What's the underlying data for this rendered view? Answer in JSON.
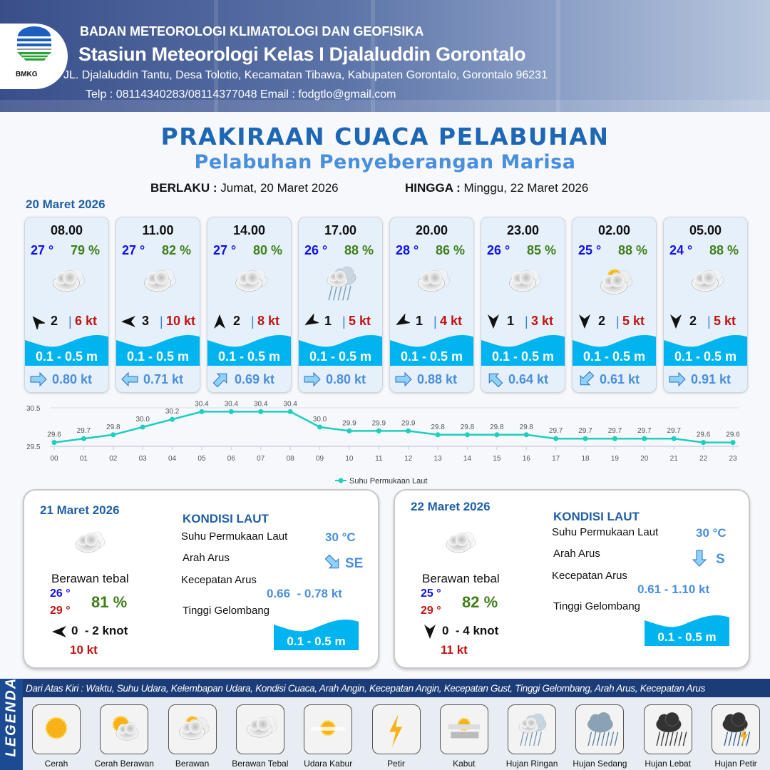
{
  "header": {
    "agency": "BADAN METEOROLOGI KLIMATOLOGI DAN GEOFISIKA",
    "station": "Stasiun Meteorologi Kelas I Djalaluddin Gorontalo",
    "address": "JL. Djalaluddin Tantu, Desa Tolotio, Kecamatan Tibawa, Kabupaten Gorontalo, Gorontalo 96231",
    "contact": "Telp : 08114340283/08114377048 Email : fodgtlo@gmail.com",
    "logo_text": "BMKG"
  },
  "title": "PRAKIRAAN CUACA PELABUHAN",
  "subtitle": "Pelabuhan Penyeberangan Marisa",
  "validity": {
    "from_label": "BERLAKU :",
    "from": "Jumat, 20 Maret 2026",
    "to_label": "HINGGA :",
    "to": "Minggu, 22 Maret 2026"
  },
  "day1": {
    "date": "20 Maret 2026",
    "cards": [
      {
        "time": "08.00",
        "temp": "27 °",
        "hum": "79 %",
        "icon": "berawan-tebal",
        "wind_dir_deg": -40,
        "wind": "2",
        "gust": "6 kt",
        "wave": "0.1 - 0.5 m",
        "cur_dir_deg": 90,
        "cur": "0.80 kt"
      },
      {
        "time": "11.00",
        "temp": "27 °",
        "hum": "82 %",
        "icon": "berawan-tebal",
        "wind_dir_deg": -90,
        "wind": "3",
        "gust": "10 kt",
        "wave": "0.1 - 0.5 m",
        "cur_dir_deg": 270,
        "cur": "0.71 kt"
      },
      {
        "time": "14.00",
        "temp": "27 °",
        "hum": "80 %",
        "icon": "berawan-tebal",
        "wind_dir_deg": 0,
        "wind": "2",
        "gust": "8 kt",
        "wave": "0.1 - 0.5 m",
        "cur_dir_deg": 45,
        "cur": "0.69 kt"
      },
      {
        "time": "17.00",
        "temp": "26 °",
        "hum": "88 %",
        "icon": "hujan-ringan",
        "wind_dir_deg": -120,
        "wind": "1",
        "gust": "5 kt",
        "wave": "0.1 - 0.5 m",
        "cur_dir_deg": 90,
        "cur": "0.80 kt"
      },
      {
        "time": "20.00",
        "temp": "28 °",
        "hum": "86 %",
        "icon": "berawan-tebal",
        "wind_dir_deg": -120,
        "wind": "1",
        "gust": "4 kt",
        "wave": "0.1 - 0.5 m",
        "cur_dir_deg": 90,
        "cur": "0.88 kt"
      },
      {
        "time": "23.00",
        "temp": "26 °",
        "hum": "85 %",
        "icon": "berawan-tebal",
        "wind_dir_deg": 180,
        "wind": "1",
        "gust": "3 kt",
        "wave": "0.1 - 0.5 m",
        "cur_dir_deg": 315,
        "cur": "0.64 kt"
      },
      {
        "time": "02.00",
        "temp": "25 °",
        "hum": "88 %",
        "icon": "berawan",
        "wind_dir_deg": 180,
        "wind": "2",
        "gust": "5 kt",
        "wave": "0.1 - 0.5 m",
        "cur_dir_deg": 225,
        "cur": "0.61 kt"
      },
      {
        "time": "05.00",
        "temp": "24 °",
        "hum": "88 %",
        "icon": "berawan-tebal",
        "wind_dir_deg": 180,
        "wind": "2",
        "gust": "5 kt",
        "wave": "0.1 - 0.5 m",
        "cur_dir_deg": 90,
        "cur": "0.91 kt"
      }
    ]
  },
  "chart_data": {
    "type": "line",
    "x": [
      "00",
      "01",
      "02",
      "03",
      "04",
      "05",
      "06",
      "07",
      "08",
      "09",
      "10",
      "11",
      "12",
      "13",
      "14",
      "15",
      "16",
      "17",
      "18",
      "19",
      "20",
      "21",
      "22",
      "23"
    ],
    "series": [
      {
        "name": "Suhu Permukaan Laut",
        "values": [
          29.6,
          29.7,
          29.8,
          30.0,
          30.2,
          30.4,
          30.4,
          30.4,
          30.4,
          30.0,
          29.9,
          29.9,
          29.9,
          29.8,
          29.8,
          29.8,
          29.8,
          29.7,
          29.7,
          29.7,
          29.7,
          29.7,
          29.6,
          29.6
        ],
        "color": "#1ccfbf"
      }
    ],
    "yticks": [
      "30.5",
      "29.5"
    ],
    "ylim": [
      29.5,
      30.5
    ],
    "legend": "bottom",
    "grid": true
  },
  "days": [
    {
      "date": "21 Maret 2026",
      "icon": "berawan-tebal",
      "cond": "Berawan tebal",
      "tmin": "26 °",
      "tmax": "29 °",
      "hum": "81 %",
      "wind_dir_deg": -90,
      "wind": "0  - 2 knot",
      "gust": "10 kt",
      "sea_title": "KONDISI LAUT",
      "sst_label": "Suhu Permukaan Laut",
      "sst": "30 °C",
      "dir_label": "Arah Arus",
      "cur_dir": "SE",
      "cur_dir_deg": 135,
      "spd_label": "Kecepatan Arus",
      "spd": "0.66  - 0.78 kt",
      "wave_label": "Tinggi Gelombang",
      "wave": "0.1 - 0.5 m"
    },
    {
      "date": "22 Maret 2026",
      "icon": "berawan-tebal",
      "cond": "Berawan tebal",
      "tmin": "25 °",
      "tmax": "29 °",
      "hum": "82 %",
      "wind_dir_deg": 180,
      "wind": "0  - 4 knot",
      "gust": "11 kt",
      "sea_title": "KONDISI LAUT",
      "sst_label": "Suhu Permukaan Laut",
      "sst": "30 °C",
      "dir_label": "Arah Arus",
      "cur_dir": "S",
      "cur_dir_deg": 180,
      "spd_label": "Kecepatan Arus",
      "spd": "0.61 - 1.10 kt",
      "wave_label": "Tinggi Gelombang",
      "wave": "0.1 - 0.5 m"
    }
  ],
  "legend": {
    "side": "LEGENDA",
    "desc": "Dari Atas Kiri : Waktu, Suhu Udara, Kelembapan Udara, Kondisi Cuaca, Arah Angin, Kecepatan Angin, Kecepatan Gust, Tinggi Gelombang, Arah Arus, Kecepatan Arus",
    "items": [
      {
        "label": "Cerah",
        "icon": "cerah"
      },
      {
        "label": "Cerah Berawan",
        "icon": "cerah-berawan"
      },
      {
        "label": "Berawan",
        "icon": "berawan"
      },
      {
        "label": "Berawan Tebal",
        "icon": "berawan-tebal"
      },
      {
        "label": "Udara Kabur",
        "icon": "udara-kabur"
      },
      {
        "label": "Petir",
        "icon": "petir"
      },
      {
        "label": "Kabut",
        "icon": "kabut"
      },
      {
        "label": "Hujan Ringan",
        "icon": "hujan-ringan"
      },
      {
        "label": "Hujan Sedang",
        "icon": "hujan-sedang"
      },
      {
        "label": "Hujan Lebat",
        "icon": "hujan-lebat"
      },
      {
        "label": "Hujan Petir",
        "icon": "hujan-petir"
      }
    ]
  }
}
